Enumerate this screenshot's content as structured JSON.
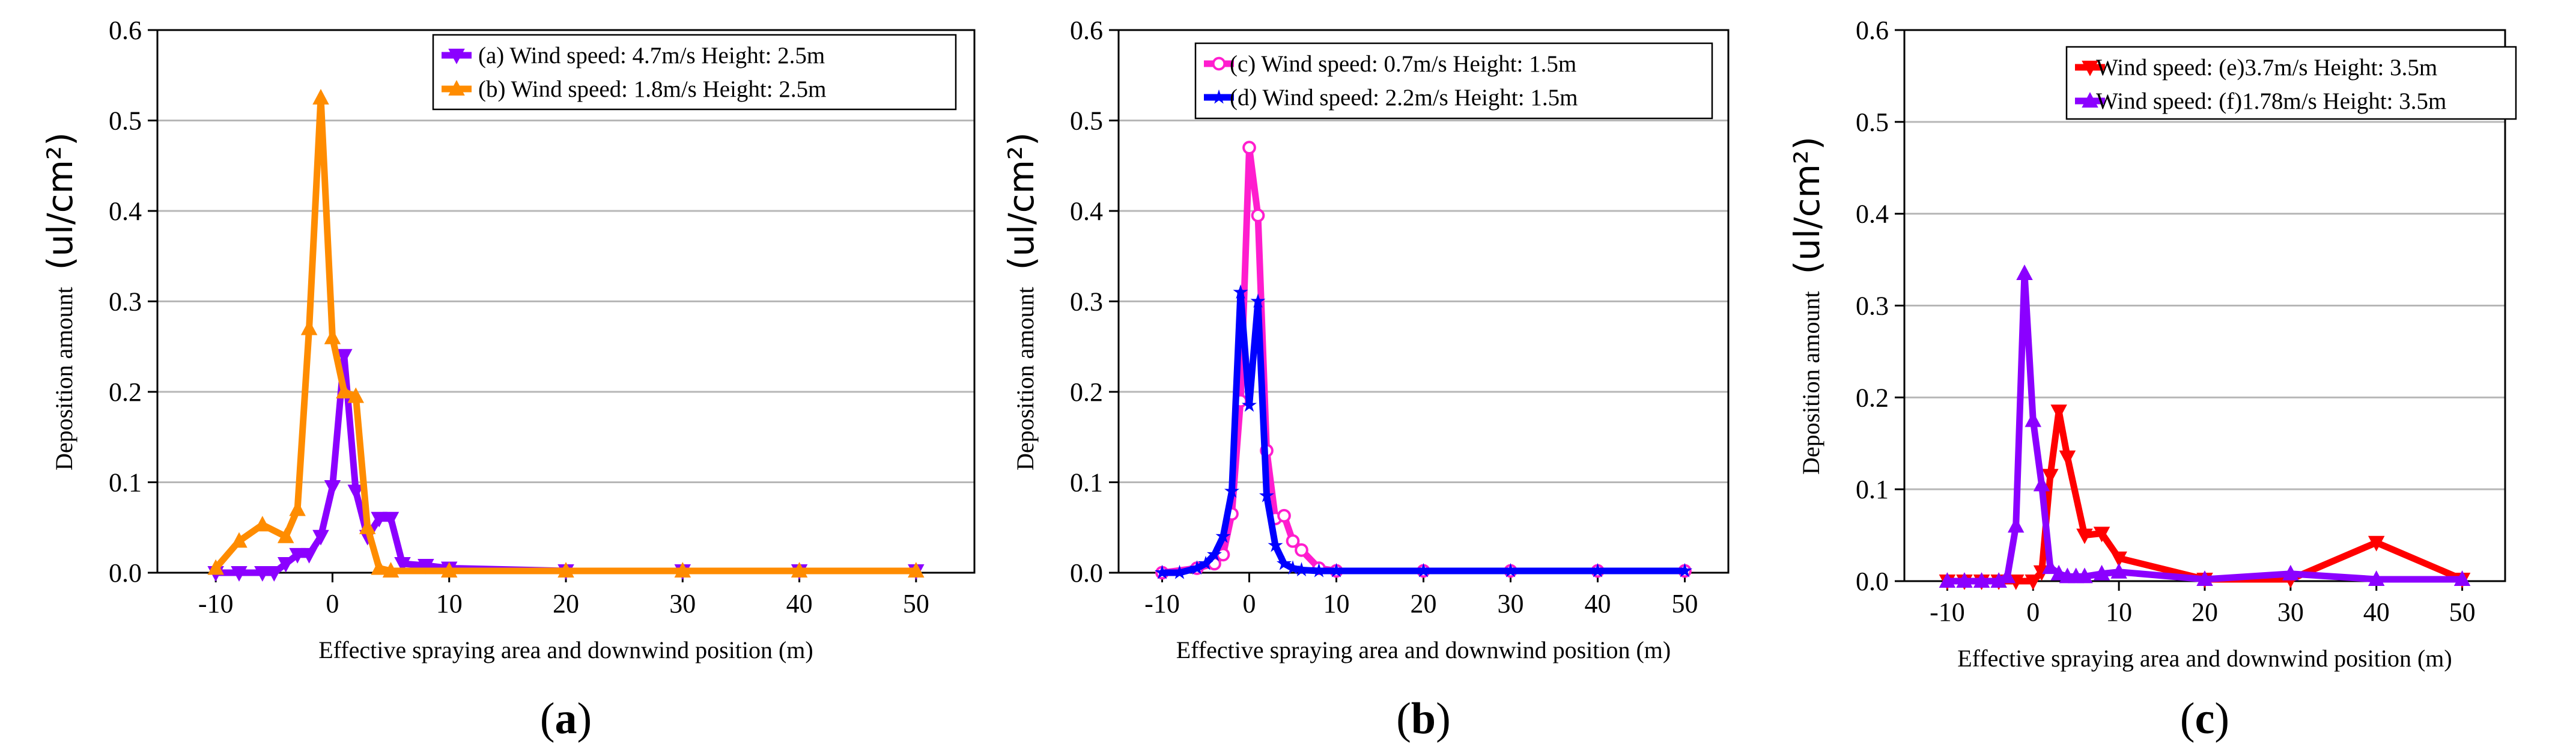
{
  "chart_data": [
    {
      "type": "line",
      "caption": {
        "open": "(",
        "letter": "a",
        "close": ")"
      },
      "ylabel": "Deposition amount",
      "ylabel_unit": "(ul/cm²)",
      "xlabel": "Effective spraying area and downwind position (m)",
      "xlim": [
        -15,
        55
      ],
      "ylim": [
        0,
        0.6
      ],
      "xticks": [
        "-10",
        "0",
        "10",
        "20",
        "30",
        "40",
        "50"
      ],
      "yticks": [
        "0.0",
        "0.1",
        "0.2",
        "0.3",
        "0.4",
        "0.5",
        "0.6"
      ],
      "grid": "horizontal",
      "legend_position": "top-right",
      "series": [
        {
          "name": "(a)  Wind speed: 4.7m/s Height: 2.5m",
          "color": "#8b00ff",
          "marker": "triangle-down",
          "x": [
            -10,
            -8,
            -6,
            -5,
            -4,
            -3,
            -2,
            -1,
            0,
            1,
            2,
            3,
            4,
            5,
            6,
            8,
            10,
            20,
            30,
            40,
            50
          ],
          "y": [
            0.0,
            0.0,
            0.0,
            0.0,
            0.01,
            0.02,
            0.02,
            0.04,
            0.095,
            0.24,
            0.09,
            0.04,
            0.06,
            0.06,
            0.01,
            0.008,
            0.005,
            0.002,
            0.002,
            0.002,
            0.002
          ]
        },
        {
          "name": "(b)  Wind speed: 1.8m/s Height: 2.5m",
          "color": "#ff8c00",
          "marker": "triangle-up",
          "x": [
            -10,
            -8,
            -6,
            -4,
            -3,
            -2,
            -1,
            0,
            1,
            2,
            3,
            4,
            5,
            10,
            20,
            30,
            40,
            50
          ],
          "y": [
            0.005,
            0.035,
            0.053,
            0.04,
            0.07,
            0.27,
            0.525,
            0.26,
            0.2,
            0.195,
            0.05,
            0.005,
            0.002,
            0.002,
            0.002,
            0.002,
            0.002,
            0.002
          ]
        }
      ]
    },
    {
      "type": "line",
      "caption": {
        "open": "(",
        "letter": "b",
        "close": ")"
      },
      "ylabel": "Deposition amount",
      "ylabel_unit": "(ul/cm²)",
      "xlabel": "Effective spraying area and downwind position (m)",
      "xlim": [
        -15,
        55
      ],
      "ylim": [
        0,
        0.6
      ],
      "xticks": [
        "-10",
        "0",
        "10",
        "20",
        "30",
        "40",
        "50"
      ],
      "yticks": [
        "0.0",
        "0.1",
        "0.2",
        "0.3",
        "0.4",
        "0.5",
        "0.6"
      ],
      "grid": "horizontal",
      "legend_position": "top-right",
      "series": [
        {
          "name": "(c)  Wind speed: 0.7m/s Height: 1.5m",
          "color": "#ff1dce",
          "marker": "circle",
          "x": [
            -10,
            -6,
            -4,
            -3,
            -2,
            -1,
            0,
            1,
            2,
            3,
            4,
            5,
            6,
            8,
            10,
            20,
            30,
            40,
            50
          ],
          "y": [
            0.0,
            0.005,
            0.01,
            0.02,
            0.065,
            0.19,
            0.47,
            0.395,
            0.135,
            0.06,
            0.063,
            0.035,
            0.025,
            0.005,
            0.002,
            0.002,
            0.002,
            0.002,
            0.002
          ]
        },
        {
          "name": "(d)  Wind speed: 2.2m/s Height: 1.5m",
          "color": "#0000ff",
          "marker": "star",
          "x": [
            -10,
            -8,
            -6,
            -5,
            -4,
            -3,
            -2,
            -1,
            0,
            1,
            2,
            3,
            4,
            5,
            6,
            8,
            10,
            20,
            30,
            40,
            50
          ],
          "y": [
            0.0,
            0.0,
            0.005,
            0.01,
            0.02,
            0.04,
            0.09,
            0.31,
            0.185,
            0.3,
            0.085,
            0.03,
            0.01,
            0.005,
            0.003,
            0.002,
            0.002,
            0.002,
            0.002,
            0.002,
            0.002
          ]
        }
      ]
    },
    {
      "type": "line",
      "caption": {
        "open": "(",
        "letter": "c",
        "close": ")"
      },
      "ylabel": "Deposition amount",
      "ylabel_unit": "(ul/cm²)",
      "xlabel": "Effective spraying area and downwind position (m)",
      "xlim": [
        -15,
        55
      ],
      "ylim": [
        0,
        0.6
      ],
      "xticks": [
        "-10",
        "0",
        "10",
        "20",
        "30",
        "40",
        "50"
      ],
      "yticks": [
        "0.0",
        "0.1",
        "0.2",
        "0.3",
        "0.4",
        "0.5",
        "0.6"
      ],
      "grid": "horizontal",
      "legend_position": "top-right",
      "series": [
        {
          "name": "Wind speed: (e)3.7m/s Height: 3.5m",
          "color": "#ff0000",
          "marker": "triangle-down",
          "x": [
            -10,
            -8,
            -6,
            -4,
            -2,
            0,
            1,
            2,
            3,
            4,
            6,
            8,
            10,
            20,
            30,
            40,
            50
          ],
          "y": [
            0.0,
            0.0,
            0.0,
            0.0,
            0.0,
            0.0,
            0.01,
            0.115,
            0.185,
            0.135,
            0.05,
            0.052,
            0.025,
            0.002,
            0.002,
            0.042,
            0.002
          ]
        },
        {
          "name": "Wind speed: (f)1.78m/s Height: 3.5m",
          "color": "#8b00ff",
          "marker": "triangle-up",
          "x": [
            -10,
            -8,
            -6,
            -4,
            -3,
            -2,
            -1,
            0,
            1,
            2,
            3,
            4,
            5,
            6,
            8,
            10,
            20,
            30,
            40,
            50
          ],
          "y": [
            0.0,
            0.0,
            0.0,
            0.0,
            0.005,
            0.06,
            0.335,
            0.175,
            0.105,
            0.015,
            0.008,
            0.005,
            0.005,
            0.005,
            0.008,
            0.01,
            0.002,
            0.008,
            0.002,
            0.002
          ]
        }
      ]
    }
  ]
}
